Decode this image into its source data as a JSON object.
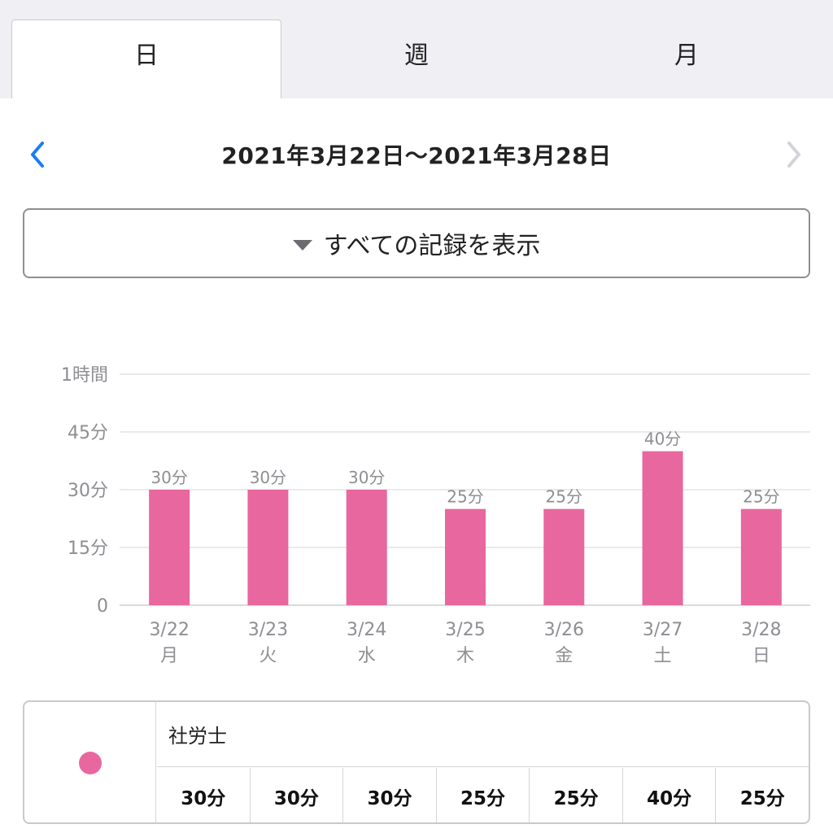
{
  "tabs": [
    {
      "label": "日",
      "active": true
    },
    {
      "label": "週",
      "active": false
    },
    {
      "label": "月",
      "active": false
    }
  ],
  "date_nav": {
    "range": "2021年3月22日〜2021年3月28日",
    "prev_icon": "chevron-left-icon",
    "next_icon": "chevron-right-icon",
    "prev_color": "#1a7cf5",
    "next_color": "#d4d4d8"
  },
  "filter": {
    "label": "すべての記録を表示",
    "icon": "triangle-down-icon"
  },
  "chart_data": {
    "type": "bar",
    "categories": [
      "3/22",
      "3/23",
      "3/24",
      "3/25",
      "3/26",
      "3/27",
      "3/28"
    ],
    "weekdays": [
      "月",
      "火",
      "水",
      "木",
      "金",
      "土",
      "日"
    ],
    "values": [
      30,
      30,
      30,
      25,
      25,
      40,
      25
    ],
    "data_labels": [
      "30分",
      "30分",
      "30分",
      "25分",
      "25分",
      "40分",
      "25分"
    ],
    "yticks": [
      0,
      15,
      30,
      45,
      60
    ],
    "ytick_labels": [
      "0",
      "15分",
      "30分",
      "45分",
      "1時間"
    ],
    "ylim": [
      0,
      60
    ],
    "grid": true,
    "color": "#e8679e"
  },
  "legend": {
    "dot_color": "#e8679e",
    "name": "社労士",
    "values": [
      "30分",
      "30分",
      "30分",
      "25分",
      "25分",
      "40分",
      "25分"
    ]
  }
}
